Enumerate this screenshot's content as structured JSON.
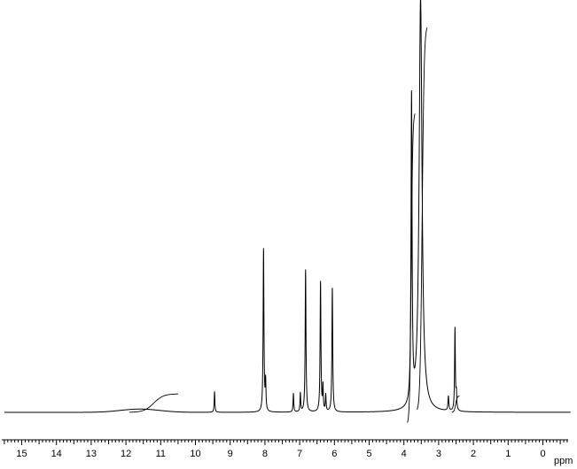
{
  "chart_data": {
    "type": "line",
    "title": "",
    "xlabel": "ppm",
    "ylabel": "",
    "xlim": [
      15.5,
      -0.8
    ],
    "x_reversed": true,
    "ylim": [
      0,
      1
    ],
    "grid": false,
    "legend": "none",
    "major_ticks": [
      15,
      14,
      13,
      12,
      11,
      10,
      9,
      8,
      7,
      6,
      5,
      4,
      3,
      2,
      1,
      0
    ],
    "minor_tick_step": 0.1,
    "baseline": 0.01,
    "broad_hump": {
      "center": 11.6,
      "width": 0.55,
      "height": 0.008
    },
    "peaks": [
      {
        "ppm": 9.45,
        "height": 0.05,
        "width": 0.012
      },
      {
        "ppm": 8.04,
        "height": 0.395,
        "width": 0.014
      },
      {
        "ppm": 7.98,
        "height": 0.07,
        "width": 0.012
      },
      {
        "ppm": 7.18,
        "height": 0.045,
        "width": 0.012
      },
      {
        "ppm": 6.98,
        "height": 0.045,
        "width": 0.012
      },
      {
        "ppm": 6.83,
        "height": 0.345,
        "width": 0.014
      },
      {
        "ppm": 6.4,
        "height": 0.315,
        "width": 0.014
      },
      {
        "ppm": 6.33,
        "height": 0.06,
        "width": 0.012
      },
      {
        "ppm": 6.25,
        "height": 0.04,
        "width": 0.012
      },
      {
        "ppm": 6.06,
        "height": 0.3,
        "width": 0.014
      },
      {
        "ppm": 3.78,
        "height": 0.745,
        "width": 0.018
      },
      {
        "ppm": 3.52,
        "height": 1.0,
        "width": 0.05
      },
      {
        "ppm": 2.72,
        "height": 0.035,
        "width": 0.015
      },
      {
        "ppm": 2.53,
        "height": 0.2,
        "width": 0.013
      },
      {
        "ppm": 2.49,
        "height": 0.04,
        "width": 0.013
      }
    ],
    "integrals": [
      {
        "from": 11.9,
        "to": 10.5,
        "rise": 0.045,
        "offset": 0.0
      },
      {
        "from": 3.9,
        "to": 3.68,
        "rise": 0.76,
        "offset": -0.03
      },
      {
        "from": 3.62,
        "to": 3.33,
        "rise": 0.94,
        "offset": 0.0
      },
      {
        "from": 2.62,
        "to": 2.4,
        "rise": 0.04,
        "offset": 0.0
      }
    ]
  }
}
